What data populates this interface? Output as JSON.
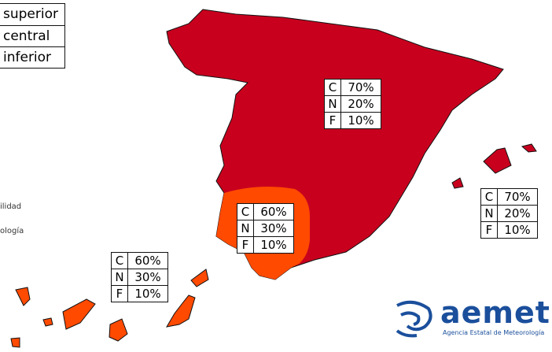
{
  "legend": [
    "superior",
    "central",
    "inferior"
  ],
  "side_labels": [
    "ilidad",
    "ología"
  ],
  "tables": [
    {
      "rows": [
        [
          "C",
          "70%"
        ],
        [
          "N",
          "20%"
        ],
        [
          "F",
          "10%"
        ]
      ]
    },
    {
      "rows": [
        [
          "C",
          "60%"
        ],
        [
          "N",
          "30%"
        ],
        [
          "F",
          "10%"
        ]
      ]
    },
    {
      "rows": [
        [
          "C",
          "70%"
        ],
        [
          "N",
          "20%"
        ],
        [
          "F",
          "10%"
        ]
      ]
    },
    {
      "rows": [
        [
          "C",
          "60%"
        ],
        [
          "N",
          "30%"
        ],
        [
          "F",
          "10%"
        ]
      ]
    }
  ],
  "logo": {
    "name": "aemet",
    "subtitle": "Agencia Estatal de Meteorología"
  }
}
